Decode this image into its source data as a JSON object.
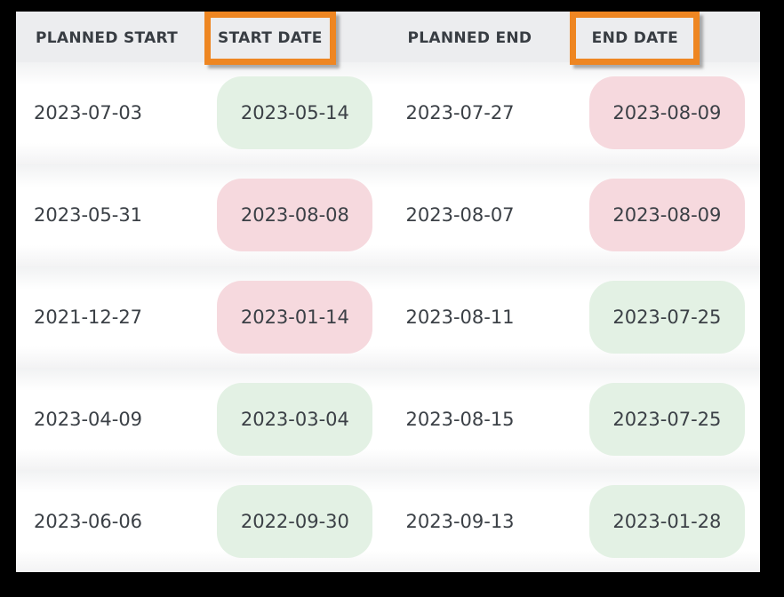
{
  "colors": {
    "frame": "#000000",
    "header_bg": "#ecedef",
    "highlight_orange": "#ee8622",
    "pill_green": "#e3f1e4",
    "pill_red": "#f6d9de",
    "text": "#3b4046"
  },
  "table": {
    "headers": [
      {
        "label": "PLANNED START",
        "highlighted": false
      },
      {
        "label": "START DATE",
        "highlighted": true
      },
      {
        "label": "PLANNED END",
        "highlighted": false
      },
      {
        "label": "END DATE",
        "highlighted": true
      }
    ],
    "rows": [
      {
        "planned_start": "2023-07-03",
        "start_date": "2023-05-14",
        "start_status": "green",
        "planned_end": "2023-07-27",
        "end_date": "2023-08-09",
        "end_status": "red"
      },
      {
        "planned_start": "2023-05-31",
        "start_date": "2023-08-08",
        "start_status": "red",
        "planned_end": "2023-08-07",
        "end_date": "2023-08-09",
        "end_status": "red"
      },
      {
        "planned_start": "2021-12-27",
        "start_date": "2023-01-14",
        "start_status": "red",
        "planned_end": "2023-08-11",
        "end_date": "2023-07-25",
        "end_status": "green"
      },
      {
        "planned_start": "2023-04-09",
        "start_date": "2023-03-04",
        "start_status": "green",
        "planned_end": "2023-08-15",
        "end_date": "2023-07-25",
        "end_status": "green"
      },
      {
        "planned_start": "2023-06-06",
        "start_date": "2022-09-30",
        "start_status": "green",
        "planned_end": "2023-09-13",
        "end_date": "2023-01-28",
        "end_status": "green"
      }
    ]
  }
}
